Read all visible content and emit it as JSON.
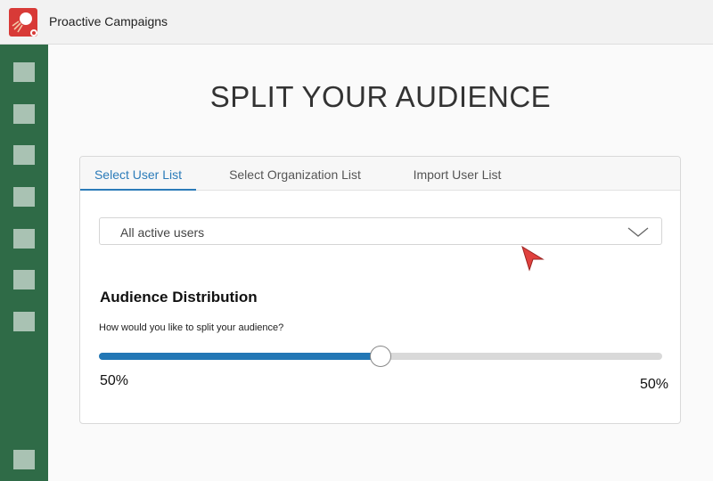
{
  "app": {
    "title": "Proactive Campaigns",
    "logo_icon": "campaign-logo-icon",
    "brand_color": "#d83a37"
  },
  "sidebar": {
    "color": "#2f6b47",
    "items": [
      {
        "icon": "nav-icon-1"
      },
      {
        "icon": "nav-icon-2"
      },
      {
        "icon": "nav-icon-3"
      },
      {
        "icon": "nav-icon-4"
      },
      {
        "icon": "nav-icon-5"
      },
      {
        "icon": "nav-icon-6"
      },
      {
        "icon": "nav-icon-7"
      },
      {
        "icon": "nav-icon-bottom"
      }
    ]
  },
  "page": {
    "title": "SPLIT YOUR AUDIENCE"
  },
  "tabs": [
    {
      "label": "Select User List",
      "active": true
    },
    {
      "label": "Select Organization List",
      "active": false
    },
    {
      "label": "Import User List",
      "active": false
    }
  ],
  "user_list_select": {
    "value": "All active users",
    "icon": "chevron-down-icon"
  },
  "distribution": {
    "title": "Audience Distribution",
    "question": "How would you like to split your audience?",
    "split_fraction": 0.5,
    "left_label": "50%",
    "right_label": "50%",
    "accent_color": "#2277b5"
  }
}
